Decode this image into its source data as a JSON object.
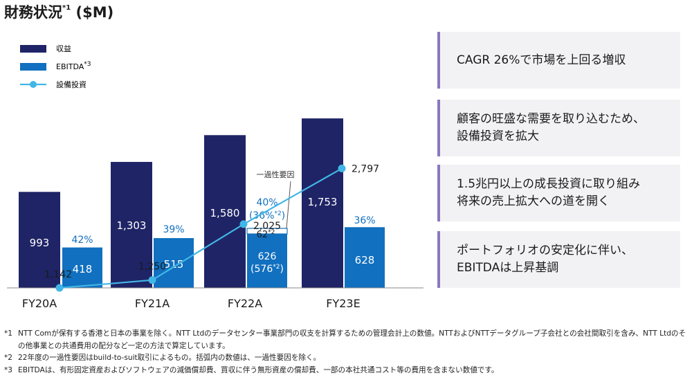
{
  "title": {
    "text": "財務状況",
    "sup": "*1",
    "unit": "($M)"
  },
  "chart_data": {
    "type": "bar",
    "categories": [
      "FY20A",
      "FY21A",
      "FY22A",
      "FY23E"
    ],
    "series": [
      {
        "name": "収益",
        "type": "bar",
        "color": "#1f2466",
        "values": [
          993,
          1303,
          1580,
          1753
        ],
        "labels": [
          "993",
          "1,303",
          "1,580",
          "1,753"
        ]
      },
      {
        "name": "EBITDA",
        "name_sup": "*3",
        "type": "bar",
        "color": "#1170bf",
        "values": [
          418,
          515,
          626,
          628
        ],
        "labels": [
          "418",
          "515",
          "626",
          "628"
        ],
        "margin_labels": [
          "42%",
          "39%",
          "40%",
          "36%"
        ]
      },
      {
        "name": "設備投資",
        "type": "line",
        "color": "#41b6e6",
        "values": [
          1142,
          1250,
          2025,
          2797
        ],
        "labels": [
          "1,142",
          "1,250",
          "2,025",
          "2,797"
        ]
      }
    ],
    "annotations": {
      "one_time_label": "一過性要因",
      "one_time_value": "62",
      "one_time_sup": "*2",
      "fy22_ebitda_excl": "(576",
      "fy22_ebitda_excl_sup": "*2",
      "fy22_ebitda_excl_close": ")",
      "fy22_margin_excl": "(36%",
      "fy22_margin_excl_sup": "*2",
      "fy22_margin_excl_close": ")"
    },
    "legend_position": "top-left"
  },
  "messages": [
    {
      "lines": [
        "CAGR 26%で市場を上回る増収"
      ]
    },
    {
      "lines": [
        "顧客の旺盛な需要を取り込むため、",
        "設備投資を拡大"
      ]
    },
    {
      "lines": [
        "1.5兆円以上の成長投資に取り組み",
        "将来の売上拡大への道を開く"
      ]
    },
    {
      "lines": [
        "ポートフォリオの安定化に伴い、",
        "EBITDAは上昇基調"
      ]
    }
  ],
  "footnotes": [
    {
      "mark": "*1",
      "text": "NTT Comが保有する香港と日本の事業を除く。NTT Ltdのデータセンター事業部門の収支を計算するための管理会計上の数値。NTTおよびNTTデータグループ子会社との会社間取引を含み、NTT Ltdのその他事業との共通費用の配分など一定の方法で算定しています。"
    },
    {
      "mark": "*2",
      "text": "22年度の一過性要因はbuild-to-suit取引によるもの。括弧内の数値は、一過性要因を除く。"
    },
    {
      "mark": "*3",
      "text": "EBITDAは、有形固定資産およびソフトウェアの減価償却費、買収に伴う無形資産の償却費、一部の本社共通コスト等の費用を含まない数値です。"
    }
  ]
}
